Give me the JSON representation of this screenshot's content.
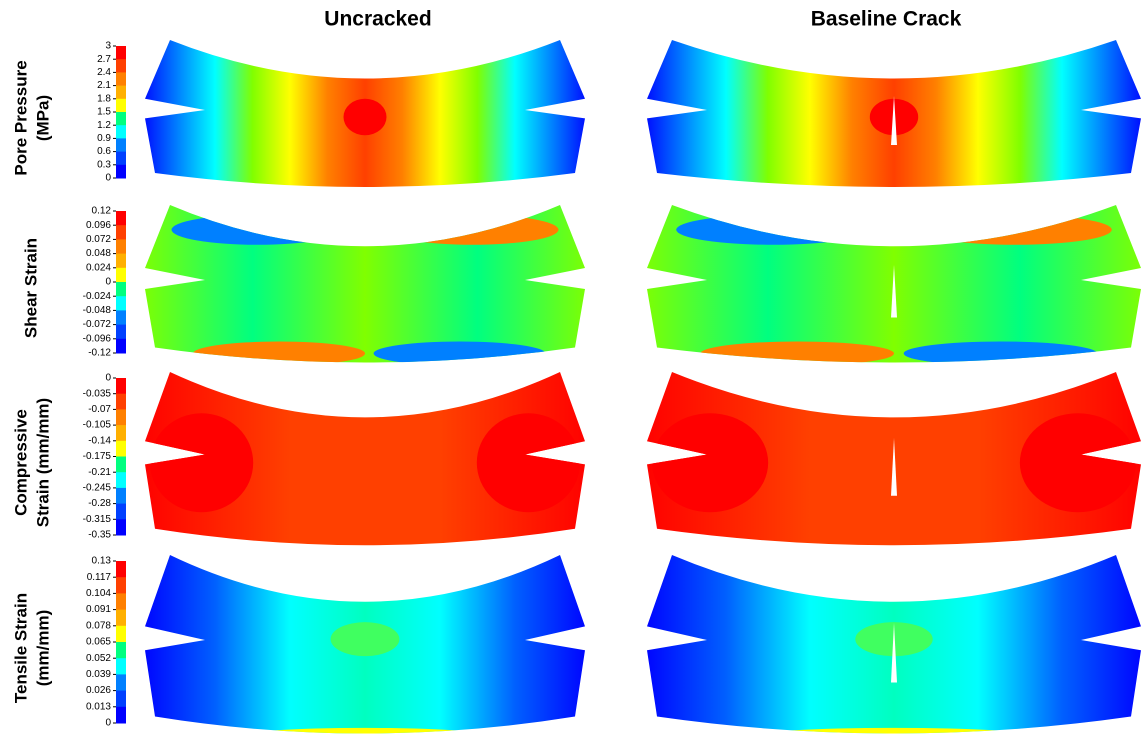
{
  "columns": [
    "Uncracked",
    "Baseline Crack"
  ],
  "rows": [
    {
      "label": [
        "Pore Pressure",
        "(MPa)"
      ],
      "ticks": [
        "3",
        "2.7",
        "2.4",
        "2.1",
        "1.8",
        "1.5",
        "1.2",
        "0.9",
        "0.6",
        "0.3",
        "0"
      ]
    },
    {
      "label": [
        "Shear Strain"
      ],
      "ticks": [
        "0.12",
        "0.096",
        "0.072",
        "0.048",
        "0.024",
        "0",
        "-0.024",
        "-0.048",
        "-0.072",
        "-0.096",
        "-0.12"
      ]
    },
    {
      "label": [
        "Compressive",
        "Strain (mm/mm)"
      ],
      "ticks": [
        "0",
        "-0.035",
        "-0.07",
        "-0.105",
        "-0.14",
        "-0.175",
        "-0.21",
        "-0.245",
        "-0.28",
        "-0.315",
        "-0.35"
      ]
    },
    {
      "label": [
        "Tensile Strain",
        "(mm/mm)"
      ],
      "ticks": [
        "0.13",
        "0.117",
        "0.104",
        "0.091",
        "0.078",
        "0.065",
        "0.052",
        "0.039",
        "0.026",
        "0.013",
        "0"
      ]
    }
  ]
}
